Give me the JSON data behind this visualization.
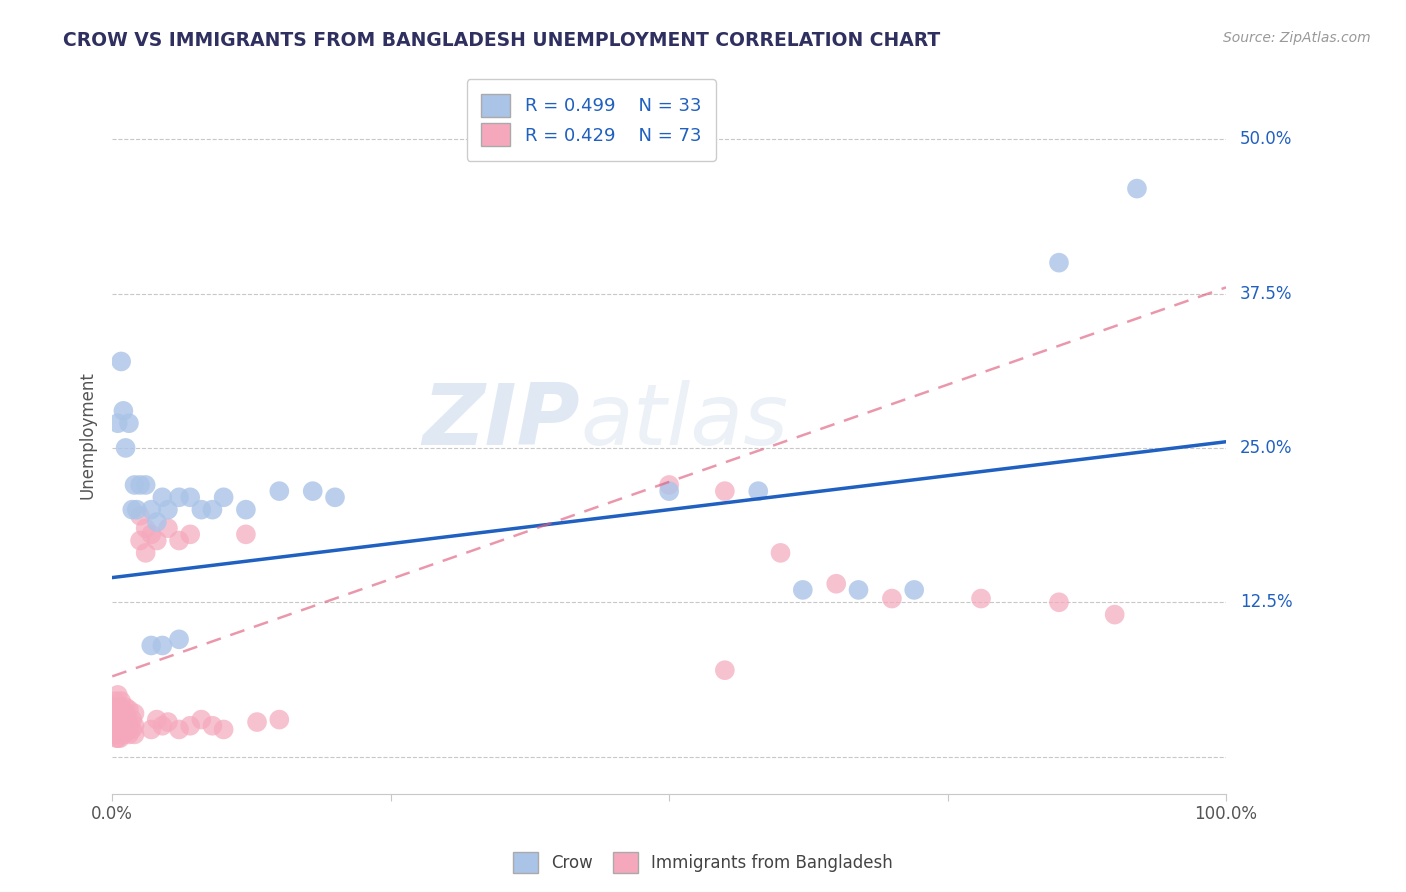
{
  "title": "CROW VS IMMIGRANTS FROM BANGLADESH UNEMPLOYMENT CORRELATION CHART",
  "source": "Source: ZipAtlas.com",
  "ylabel": "Unemployment",
  "xlim": [
    0,
    1.0
  ],
  "ylim": [
    -0.03,
    0.55
  ],
  "xticks": [
    0.0,
    0.25,
    0.5,
    0.75,
    1.0
  ],
  "xtick_labels": [
    "0.0%",
    "",
    "",
    "",
    "100.0%"
  ],
  "yticks": [
    0.0,
    0.125,
    0.25,
    0.375,
    0.5
  ],
  "ytick_labels": [
    "",
    "12.5%",
    "25.0%",
    "37.5%",
    "50.0%"
  ],
  "crow_R": 0.499,
  "crow_N": 33,
  "bangladesh_R": 0.429,
  "bangladesh_N": 73,
  "crow_color": "#aac4e8",
  "bangladesh_color": "#f5a8bc",
  "crow_line_color": "#2060c0",
  "bangladesh_line_color": "#e06080",
  "watermark_text": "ZIPatlas",
  "background_color": "#ffffff",
  "grid_color": "#c8c8c8",
  "title_color": "#303060",
  "legend_text_color": "#2060c0",
  "axis_label_color": "#555555",
  "crow_scatter": [
    [
      0.005,
      0.27
    ],
    [
      0.008,
      0.32
    ],
    [
      0.01,
      0.28
    ],
    [
      0.012,
      0.25
    ],
    [
      0.015,
      0.27
    ],
    [
      0.018,
      0.2
    ],
    [
      0.02,
      0.22
    ],
    [
      0.022,
      0.2
    ],
    [
      0.025,
      0.22
    ],
    [
      0.03,
      0.22
    ],
    [
      0.035,
      0.2
    ],
    [
      0.04,
      0.19
    ],
    [
      0.045,
      0.21
    ],
    [
      0.05,
      0.2
    ],
    [
      0.06,
      0.21
    ],
    [
      0.07,
      0.21
    ],
    [
      0.08,
      0.2
    ],
    [
      0.09,
      0.2
    ],
    [
      0.1,
      0.21
    ],
    [
      0.12,
      0.2
    ],
    [
      0.15,
      0.215
    ],
    [
      0.18,
      0.215
    ],
    [
      0.2,
      0.21
    ],
    [
      0.035,
      0.09
    ],
    [
      0.045,
      0.09
    ],
    [
      0.06,
      0.095
    ],
    [
      0.5,
      0.215
    ],
    [
      0.58,
      0.215
    ],
    [
      0.62,
      0.135
    ],
    [
      0.67,
      0.135
    ],
    [
      0.72,
      0.135
    ],
    [
      0.85,
      0.4
    ],
    [
      0.92,
      0.46
    ]
  ],
  "bangladesh_scatter": [
    [
      0.001,
      0.035
    ],
    [
      0.001,
      0.025
    ],
    [
      0.002,
      0.04
    ],
    [
      0.002,
      0.03
    ],
    [
      0.002,
      0.02
    ],
    [
      0.003,
      0.038
    ],
    [
      0.003,
      0.025
    ],
    [
      0.003,
      0.018
    ],
    [
      0.003,
      0.045
    ],
    [
      0.004,
      0.03
    ],
    [
      0.004,
      0.022
    ],
    [
      0.004,
      0.015
    ],
    [
      0.005,
      0.035
    ],
    [
      0.005,
      0.025
    ],
    [
      0.005,
      0.05
    ],
    [
      0.005,
      0.015
    ],
    [
      0.006,
      0.03
    ],
    [
      0.006,
      0.022
    ],
    [
      0.006,
      0.04
    ],
    [
      0.007,
      0.025
    ],
    [
      0.007,
      0.035
    ],
    [
      0.007,
      0.015
    ],
    [
      0.008,
      0.03
    ],
    [
      0.008,
      0.045
    ],
    [
      0.008,
      0.02
    ],
    [
      0.009,
      0.025
    ],
    [
      0.009,
      0.035
    ],
    [
      0.01,
      0.028
    ],
    [
      0.01,
      0.038
    ],
    [
      0.01,
      0.018
    ],
    [
      0.011,
      0.03
    ],
    [
      0.012,
      0.025
    ],
    [
      0.012,
      0.04
    ],
    [
      0.013,
      0.02
    ],
    [
      0.013,
      0.032
    ],
    [
      0.015,
      0.025
    ],
    [
      0.015,
      0.038
    ],
    [
      0.015,
      0.018
    ],
    [
      0.018,
      0.03
    ],
    [
      0.018,
      0.022
    ],
    [
      0.02,
      0.025
    ],
    [
      0.02,
      0.035
    ],
    [
      0.02,
      0.018
    ],
    [
      0.025,
      0.175
    ],
    [
      0.025,
      0.195
    ],
    [
      0.03,
      0.185
    ],
    [
      0.03,
      0.165
    ],
    [
      0.035,
      0.18
    ],
    [
      0.035,
      0.022
    ],
    [
      0.04,
      0.175
    ],
    [
      0.04,
      0.03
    ],
    [
      0.045,
      0.025
    ],
    [
      0.05,
      0.185
    ],
    [
      0.05,
      0.028
    ],
    [
      0.06,
      0.175
    ],
    [
      0.06,
      0.022
    ],
    [
      0.07,
      0.18
    ],
    [
      0.07,
      0.025
    ],
    [
      0.08,
      0.03
    ],
    [
      0.09,
      0.025
    ],
    [
      0.1,
      0.022
    ],
    [
      0.12,
      0.18
    ],
    [
      0.13,
      0.028
    ],
    [
      0.15,
      0.03
    ],
    [
      0.5,
      0.22
    ],
    [
      0.55,
      0.215
    ],
    [
      0.6,
      0.165
    ],
    [
      0.65,
      0.14
    ],
    [
      0.7,
      0.128
    ],
    [
      0.78,
      0.128
    ],
    [
      0.85,
      0.125
    ],
    [
      0.9,
      0.115
    ],
    [
      0.55,
      0.07
    ]
  ],
  "crow_line": [
    0.0,
    1.0,
    0.145,
    0.255
  ],
  "bangladesh_line": [
    0.0,
    1.0,
    0.065,
    0.38
  ]
}
